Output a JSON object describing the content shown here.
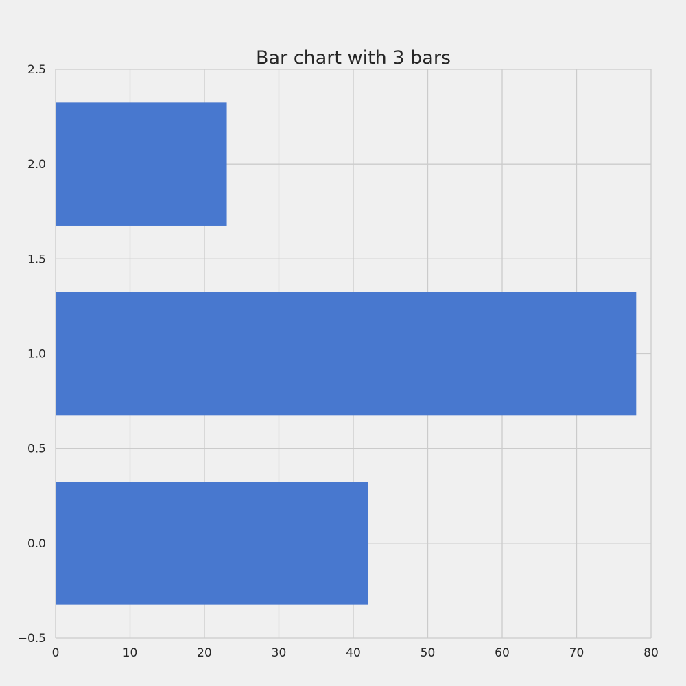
{
  "chart_data": {
    "type": "bar",
    "orientation": "horizontal",
    "title": "Bar chart with 3 bars",
    "xlabel": "",
    "ylabel": "",
    "categories": [
      0,
      1,
      2
    ],
    "values": [
      42,
      78,
      23
    ],
    "bar_width": 0.65,
    "xlim": [
      0,
      80
    ],
    "ylim": [
      -0.5,
      2.5
    ],
    "xticks": [
      0,
      10,
      20,
      30,
      40,
      50,
      60,
      70,
      80
    ],
    "xtick_labels": [
      "0",
      "10",
      "20",
      "30",
      "40",
      "50",
      "60",
      "70",
      "80"
    ],
    "yticks": [
      -0.5,
      0.0,
      0.5,
      1.0,
      1.5,
      2.0,
      2.5
    ],
    "ytick_labels": [
      "−0.5",
      "0.0",
      "0.5",
      "1.0",
      "1.5",
      "2.0",
      "2.5"
    ],
    "grid": true,
    "bar_color": "#4878cf",
    "background_color": "#f0f0f0",
    "grid_color": "#cbcbcb"
  }
}
